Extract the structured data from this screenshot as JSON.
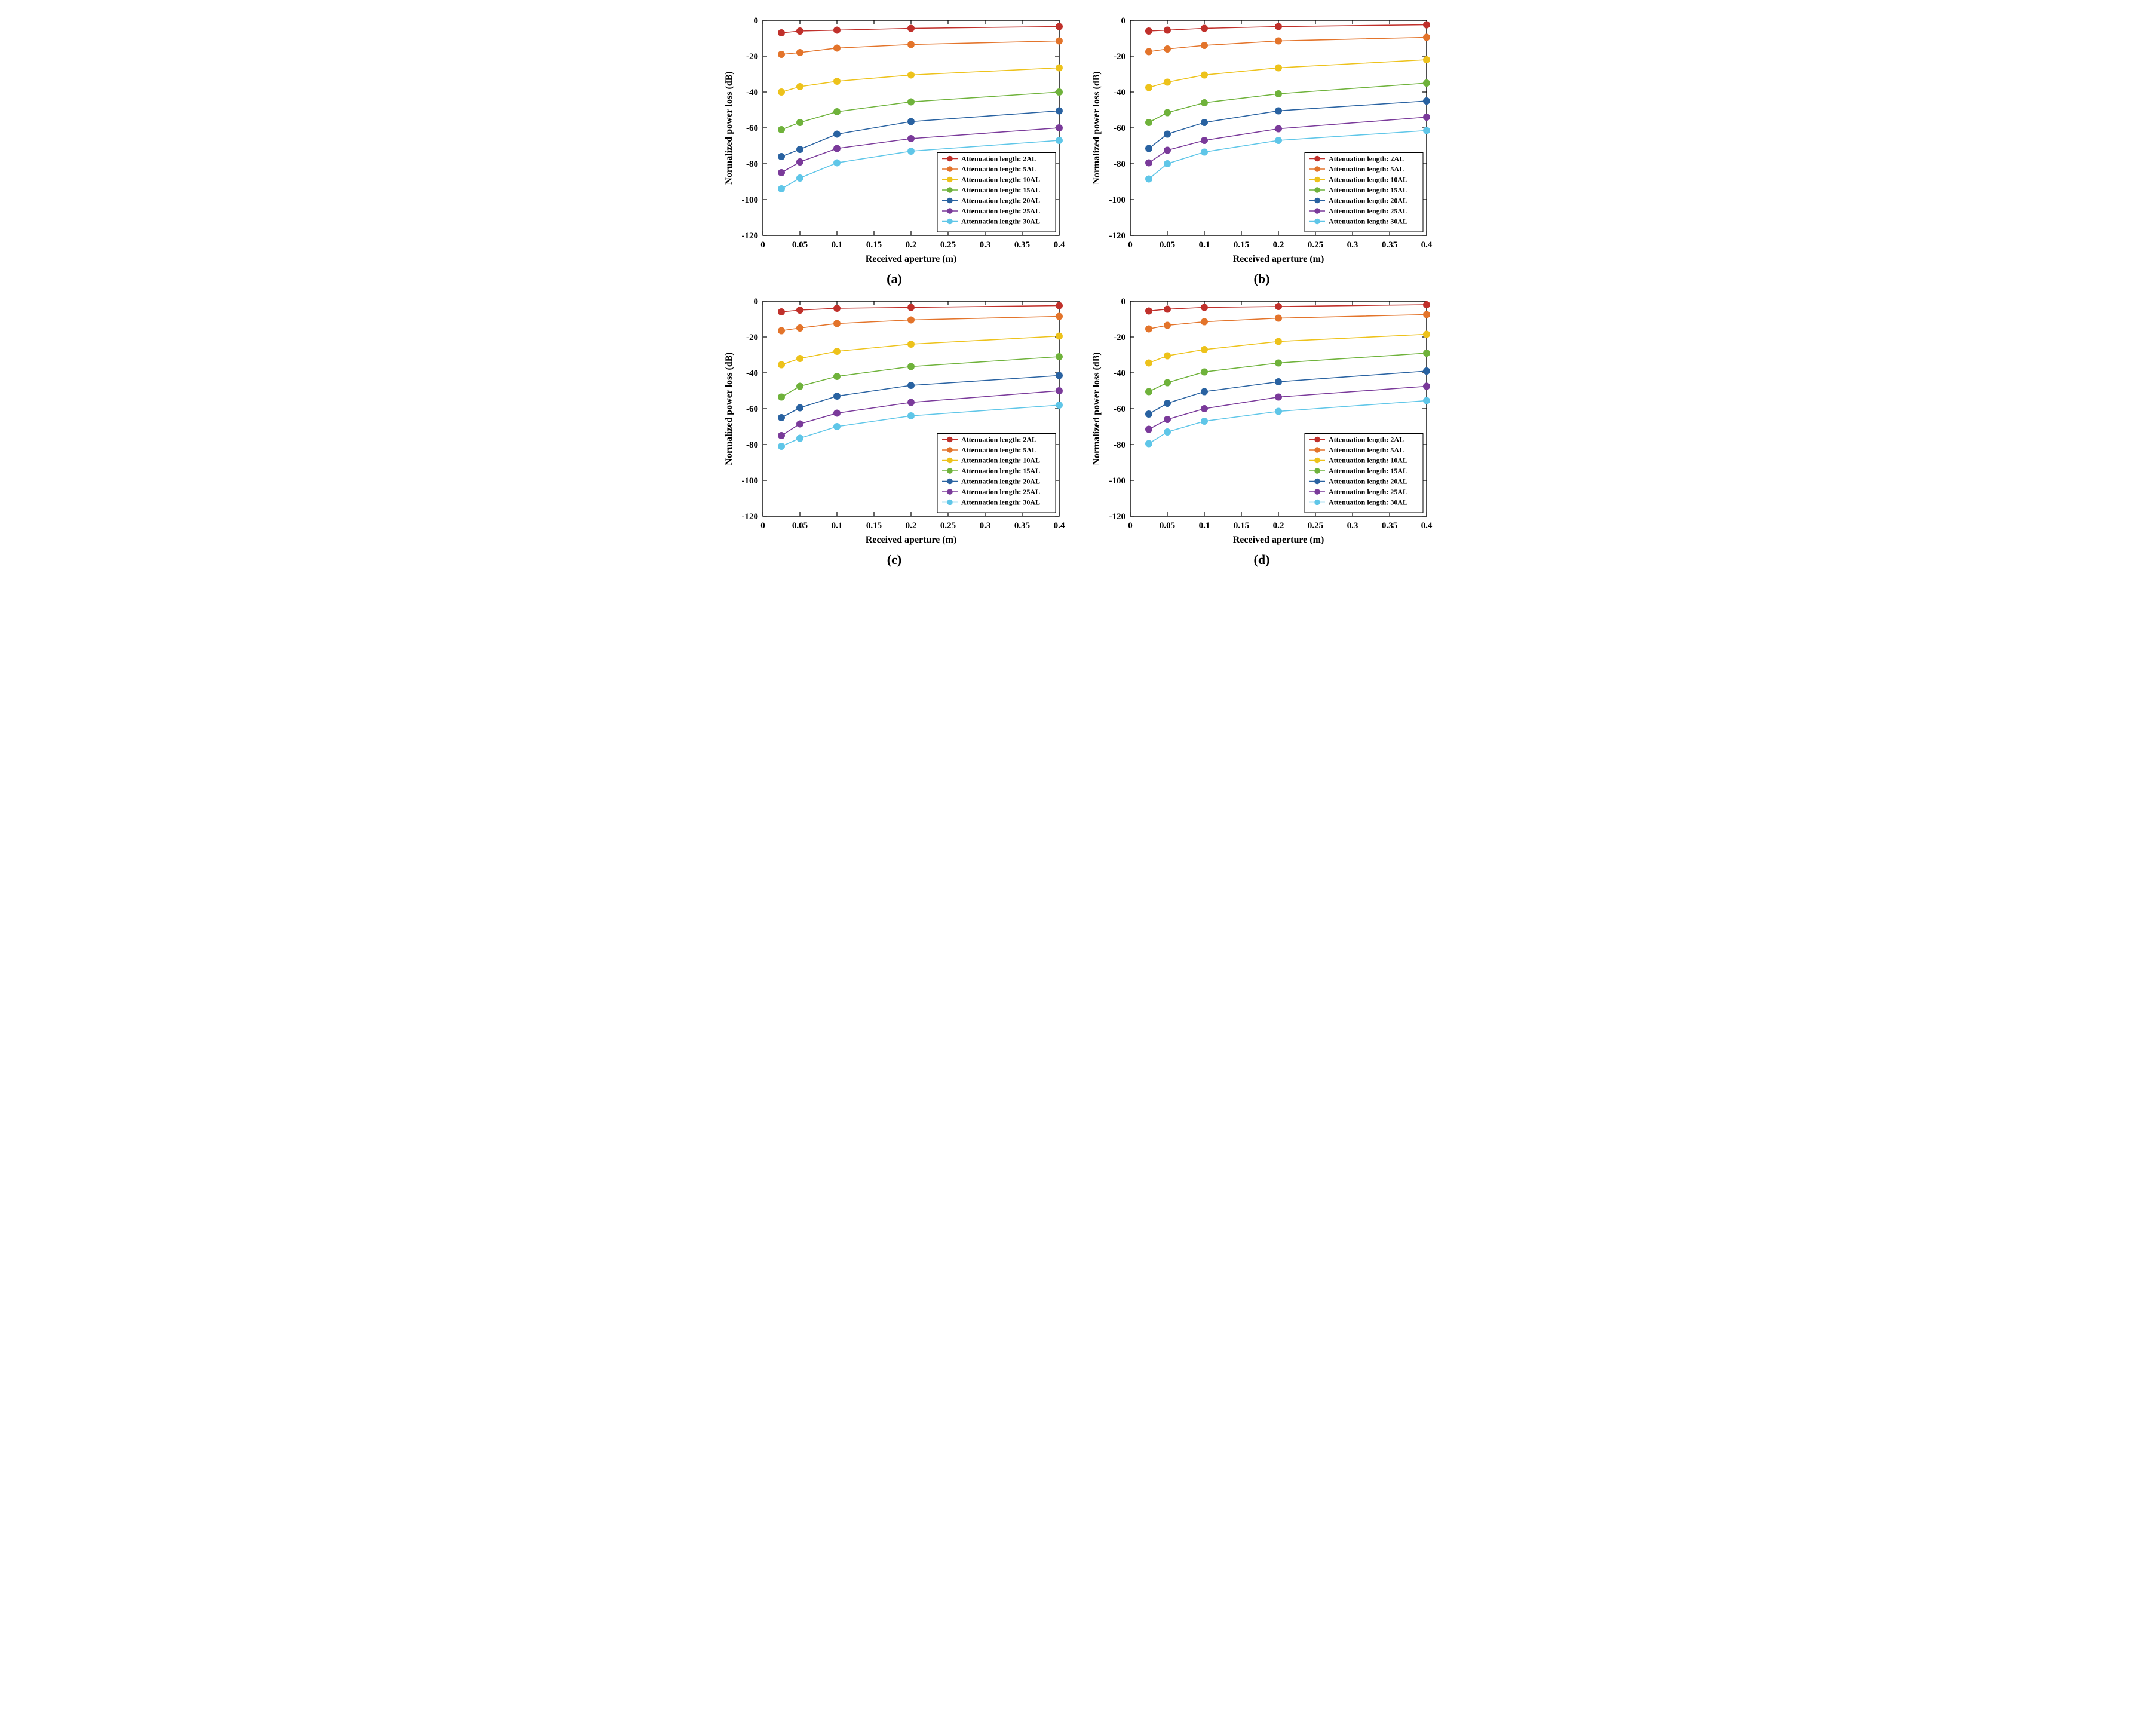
{
  "global": {
    "xlabel": "Received aperture (m)",
    "ylabel": "Normalized power loss (dB)",
    "xlim": [
      0,
      0.4
    ],
    "ylim": [
      -120,
      0
    ],
    "xticks": [
      0,
      0.05,
      0.1,
      0.15,
      0.2,
      0.25,
      0.3,
      0.35,
      0.4
    ],
    "xtick_labels": [
      "0",
      "0.05",
      "0.1",
      "0.15",
      "0.2",
      "0.25",
      "0.3",
      "0.35",
      "0.4"
    ],
    "yticks": [
      -120,
      -100,
      -80,
      -60,
      -40,
      -20,
      0
    ],
    "ytick_labels": [
      "-120",
      "-100",
      "-80",
      "-60",
      "-40",
      "-20",
      "0"
    ],
    "background_color": "#ffffff",
    "axis_color": "#000000",
    "axis_width": 1.4,
    "tick_fontsize": 15,
    "tick_fontweight": "bold",
    "label_fontsize": 16,
    "label_fontweight": "bold",
    "line_width": 1.6,
    "marker_radius": 5.5,
    "x_values": [
      0.025,
      0.05,
      0.1,
      0.2,
      0.4
    ],
    "legend_fontsize": 12,
    "legend_fontweight": "bold",
    "legend_border": "#000000",
    "legend_bg": "#ffffff",
    "colors": {
      "2AL": "#c0302b",
      "5AL": "#e3742b",
      "10AL": "#edc21b",
      "15AL": "#6fb23b",
      "20AL": "#2962a1",
      "25AL": "#7a3a9a",
      "30AL": "#5fc6e8"
    },
    "legend_labels": [
      "Attenuation length: 2AL",
      "Attenuation length: 5AL",
      "Attenuation length: 10AL",
      "Attenuation length: 15AL",
      "Attenuation length: 20AL",
      "Attenuation length: 25AL",
      "Attenuation length: 30AL"
    ]
  },
  "panels": [
    {
      "id": "a",
      "sublabel": "(a)",
      "series": [
        {
          "key": "2AL",
          "y": [
            -7,
            -6,
            -5.5,
            -4.5,
            -3.5
          ]
        },
        {
          "key": "5AL",
          "y": [
            -19,
            -18,
            -15.5,
            -13.5,
            -11.5
          ]
        },
        {
          "key": "10AL",
          "y": [
            -40,
            -37,
            -34,
            -30.5,
            -26.5
          ]
        },
        {
          "key": "15AL",
          "y": [
            -61,
            -57,
            -51,
            -45.5,
            -40
          ]
        },
        {
          "key": "20AL",
          "y": [
            -76,
            -72,
            -63.5,
            -56.5,
            -50.5
          ]
        },
        {
          "key": "25AL",
          "y": [
            -85,
            -79,
            -71.5,
            -66,
            -60
          ]
        },
        {
          "key": "30AL",
          "y": [
            -94,
            -88,
            -79.5,
            -73,
            -67
          ]
        }
      ]
    },
    {
      "id": "b",
      "sublabel": "(b)",
      "series": [
        {
          "key": "2AL",
          "y": [
            -6,
            -5.5,
            -4.5,
            -3.5,
            -2.5
          ]
        },
        {
          "key": "5AL",
          "y": [
            -17.5,
            -16,
            -14,
            -11.5,
            -9.5
          ]
        },
        {
          "key": "10AL",
          "y": [
            -37.5,
            -34.5,
            -30.5,
            -26.5,
            -22
          ]
        },
        {
          "key": "15AL",
          "y": [
            -57,
            -51.5,
            -46,
            -41,
            -35
          ]
        },
        {
          "key": "20AL",
          "y": [
            -71.5,
            -63.5,
            -57,
            -50.5,
            -45
          ]
        },
        {
          "key": "25AL",
          "y": [
            -79.5,
            -72.5,
            -67,
            -60.5,
            -54
          ]
        },
        {
          "key": "30AL",
          "y": [
            -88.5,
            -80,
            -73.5,
            -67,
            -61.5
          ]
        }
      ]
    },
    {
      "id": "c",
      "sublabel": "(c)",
      "series": [
        {
          "key": "2AL",
          "y": [
            -6,
            -5,
            -4,
            -3.5,
            -2.5
          ]
        },
        {
          "key": "5AL",
          "y": [
            -16.5,
            -15,
            -12.5,
            -10.5,
            -8.5
          ]
        },
        {
          "key": "10AL",
          "y": [
            -35.5,
            -32,
            -28,
            -24,
            -19.5
          ]
        },
        {
          "key": "15AL",
          "y": [
            -53.5,
            -47.5,
            -42,
            -36.5,
            -31
          ]
        },
        {
          "key": "20AL",
          "y": [
            -65,
            -59.5,
            -53,
            -47,
            -41.5
          ]
        },
        {
          "key": "25AL",
          "y": [
            -75,
            -68.5,
            -62.5,
            -56.5,
            -50
          ]
        },
        {
          "key": "30AL",
          "y": [
            -81,
            -76.5,
            -70,
            -64,
            -58
          ]
        }
      ]
    },
    {
      "id": "d",
      "sublabel": "(d)",
      "series": [
        {
          "key": "2AL",
          "y": [
            -5.5,
            -4.5,
            -3.5,
            -3,
            -2
          ]
        },
        {
          "key": "5AL",
          "y": [
            -15.5,
            -13.5,
            -11.5,
            -9.5,
            -7.5
          ]
        },
        {
          "key": "10AL",
          "y": [
            -34.5,
            -30.5,
            -27,
            -22.5,
            -18.5
          ]
        },
        {
          "key": "15AL",
          "y": [
            -50.5,
            -45.5,
            -39.5,
            -34.5,
            -29
          ]
        },
        {
          "key": "20AL",
          "y": [
            -63,
            -57,
            -50.5,
            -45,
            -39
          ]
        },
        {
          "key": "25AL",
          "y": [
            -71.5,
            -66,
            -60,
            -53.5,
            -47.5
          ]
        },
        {
          "key": "30AL",
          "y": [
            -79.5,
            -73,
            -67,
            -61.5,
            -55.5
          ]
        }
      ]
    }
  ]
}
